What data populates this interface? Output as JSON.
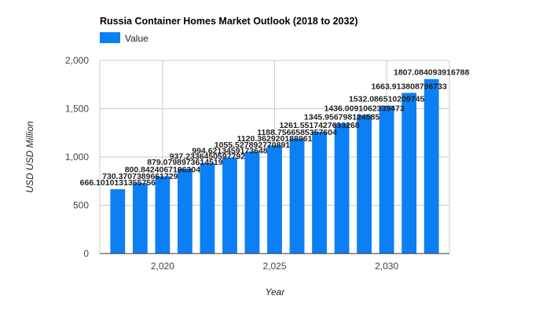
{
  "chart_data": {
    "type": "bar",
    "title": "Russia Container Homes Market Outlook (2018 to 2032)",
    "xlabel": "Year",
    "ylabel": "USD USD Million",
    "legend": {
      "position": "top-left",
      "entries": [
        "Value"
      ]
    },
    "series": [
      {
        "name": "Value",
        "color": "#0d7ff4",
        "x": [
          2018,
          2019,
          2020,
          2021,
          2022,
          2023,
          2024,
          2025,
          2026,
          2027,
          2028,
          2029,
          2030,
          2031,
          2032
        ],
        "values": [
          666.1010131355756,
          730.3707389661729,
          800.8424067196304,
          879.0798973614519,
          937.2336450597792,
          994.6213459173648,
          1055.527892770891,
          1120.362920188961,
          1188.7566585357604,
          1261.5517427633267,
          1345.956798124585,
          1436.0091062339473,
          1532.086510209745,
          1663.913808796733,
          1807.084093916788
        ],
        "labels": [
          "666.1010131355756",
          "730.3707389661729",
          "800.8424067196304",
          "879.0798973614519",
          "937.2336450597792",
          "994.6213459173648",
          "1055.527892770891",
          "1120.362920188961",
          "1188.7566585357604",
          "1261.5517427633268",
          "1345.956798124585",
          "1436.0091062339473",
          "1532.086510209745",
          "1663.913808796733",
          "1807.084093916788"
        ]
      }
    ],
    "yticks": [
      "0",
      "500",
      "1,000",
      "1,500",
      "2,000"
    ],
    "xticks": [
      {
        "value": 2020,
        "label": "2,020"
      },
      {
        "value": 2025,
        "label": "2,025"
      },
      {
        "value": 2030,
        "label": "2,030"
      }
    ],
    "ylim": [
      0,
      2000
    ],
    "xlim": [
      2017.2,
      2032.8
    ],
    "grid": true
  }
}
